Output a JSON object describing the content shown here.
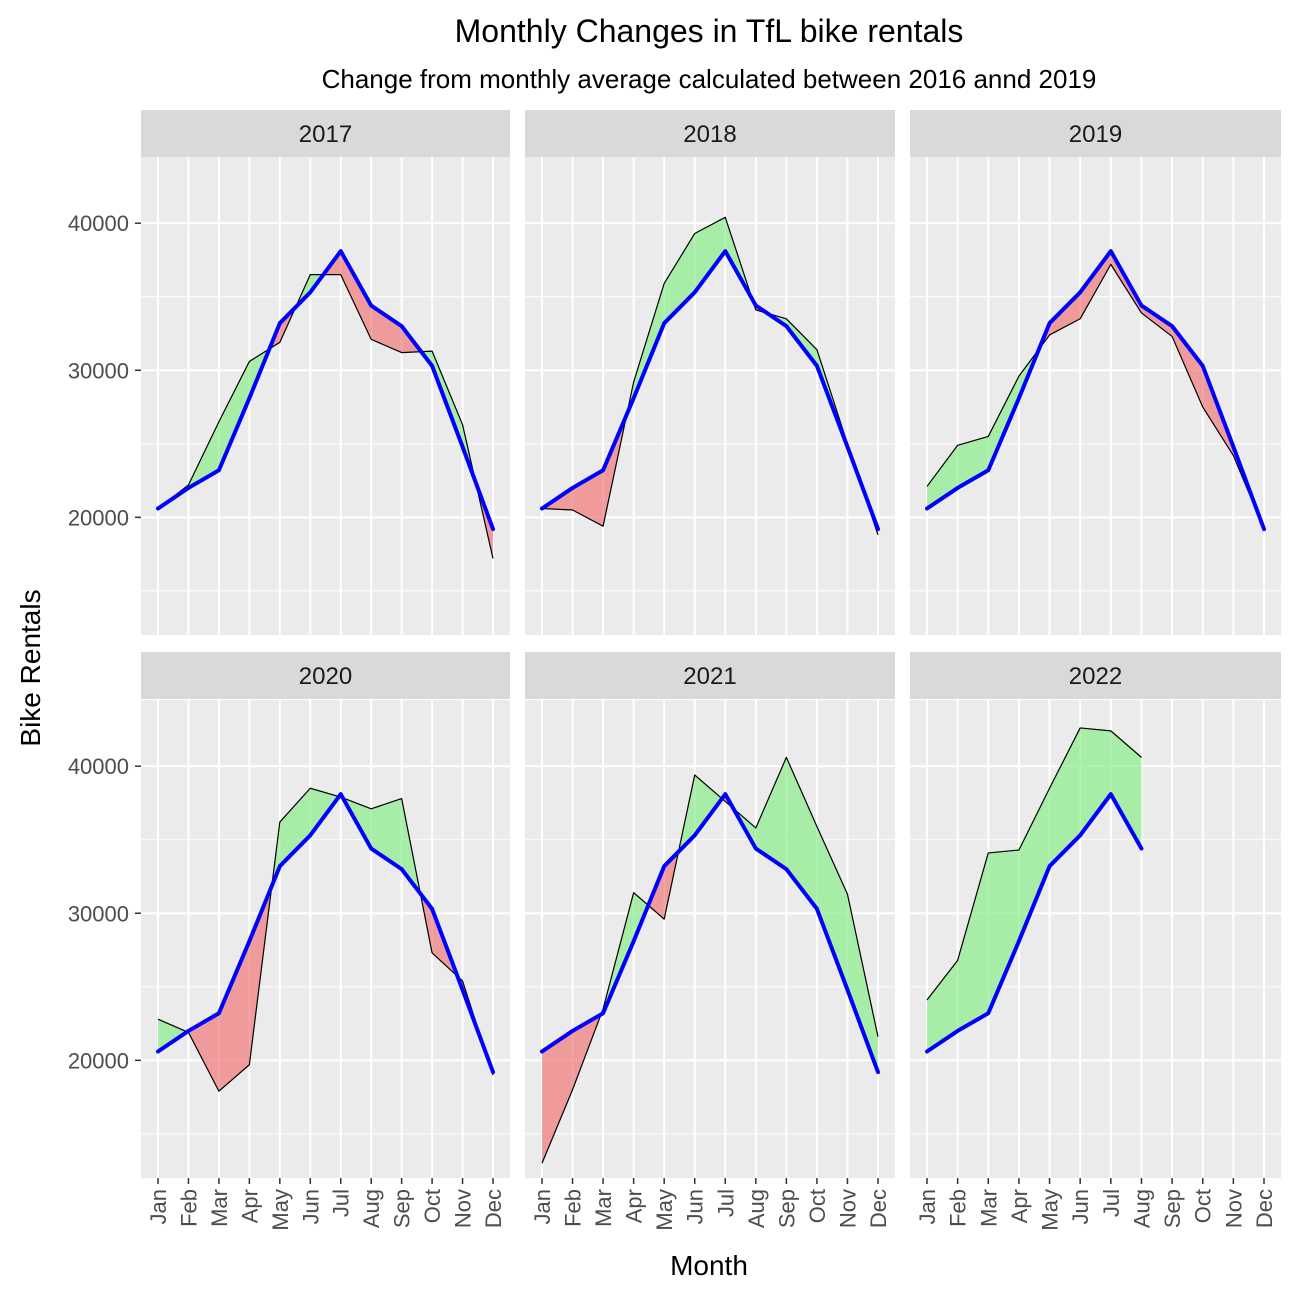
{
  "chart_data": {
    "type": "area",
    "title": "Monthly Changes in TfL bike rentals",
    "subtitle": "Change from monthly average calculated between 2016 annd 2019",
    "xlabel": "Month",
    "ylabel": "Bike Rentals",
    "categories": [
      "Jan",
      "Feb",
      "Mar",
      "Apr",
      "May",
      "Jun",
      "Jul",
      "Aug",
      "Sep",
      "Oct",
      "Nov",
      "Dec"
    ],
    "yticks": [
      20000,
      30000,
      40000
    ],
    "ylim": [
      12000,
      44500
    ],
    "grid": true,
    "colors": {
      "above": "#90ee90",
      "below": "#f08080",
      "average_line": "#0000ff",
      "panel_bg": "#ebebeb",
      "strip_bg": "#d9d9d9",
      "grid": "#ffffff"
    },
    "expected": [
      20600,
      22000,
      23200,
      28100,
      33200,
      35300,
      38100,
      34400,
      33000,
      30300,
      24800,
      19200
    ],
    "facets": [
      {
        "label": "2017",
        "actual": [
          20600,
          22200,
          26500,
          30600,
          31900,
          36500,
          36500,
          32100,
          31200,
          31300,
          26300,
          17200
        ]
      },
      {
        "label": "2018",
        "actual": [
          20600,
          20500,
          19400,
          29200,
          35900,
          39300,
          40400,
          34100,
          33500,
          31400,
          25000,
          18800
        ]
      },
      {
        "label": "2019",
        "actual": [
          22100,
          24900,
          25500,
          29600,
          32400,
          33500,
          37200,
          33900,
          32300,
          27500,
          24200,
          19200
        ]
      },
      {
        "label": "2020",
        "actual": [
          22800,
          21900,
          17900,
          19700,
          36200,
          38500,
          37900,
          37100,
          37800,
          27300,
          25400,
          19000
        ]
      },
      {
        "label": "2021",
        "actual": [
          13000,
          18000,
          23500,
          31400,
          29600,
          39400,
          37600,
          35800,
          40600,
          35900,
          31300,
          21600
        ]
      },
      {
        "label": "2022",
        "actual": [
          24100,
          26800,
          34100,
          34300,
          38500,
          42600,
          42400,
          40600
        ]
      }
    ]
  }
}
